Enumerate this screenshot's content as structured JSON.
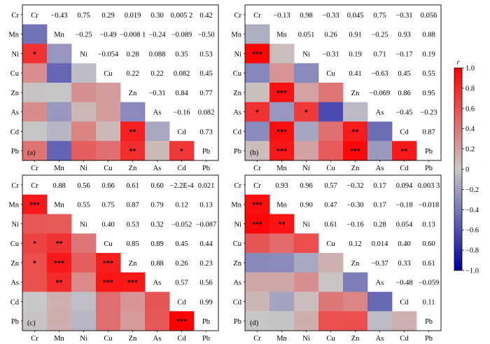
{
  "chart_data": {
    "type": "heatmap",
    "variables": [
      "Cr",
      "Mn",
      "Ni",
      "Cu",
      "Zn",
      "As",
      "Cd",
      "Pb"
    ],
    "colorbar": {
      "label": "r",
      "range": [
        -1.0,
        1.0
      ],
      "ticks": [
        "1.0",
        "0.8",
        "0.6",
        "0.4",
        "0.2",
        "0",
        "−0.2",
        "−0.4",
        "−0.6",
        "−0.8",
        "−1.0"
      ],
      "colors": {
        "negative": "#0000a0",
        "neutral": "#c8c8c8",
        "positive": "#ff0000"
      }
    },
    "panels": [
      {
        "label": "(a)",
        "upper_labels": [
          [
            "",
            "−0.43",
            "0.75",
            "0.29",
            "0.019",
            "0.30",
            "0.005 2",
            "0.42"
          ],
          [
            "",
            "",
            "−0.25",
            "−0.49",
            "−0.008 1",
            "−0.24",
            "−0.089",
            "−0.50"
          ],
          [
            "",
            "",
            "",
            "−0.054",
            "0.28",
            "0.088",
            "0.35",
            "0.53"
          ],
          [
            "",
            "",
            "",
            "",
            "0.22",
            "0.22",
            "0.082",
            "0.45"
          ],
          [
            "",
            "",
            "",
            "",
            "",
            "−0.31",
            "0.84",
            "0.77"
          ],
          [
            "",
            "",
            "",
            "",
            "",
            "",
            "−0.16",
            "0.082"
          ],
          [
            "",
            "",
            "",
            "",
            "",
            "",
            "",
            "0.73"
          ],
          [
            "",
            "",
            "",
            "",
            "",
            "",
            "",
            ""
          ]
        ],
        "lower": [
          [
            0,
            0,
            0,
            0,
            0,
            0,
            0,
            0
          ],
          [
            -0.43,
            0,
            0,
            0,
            0,
            0,
            0,
            0
          ],
          [
            0.75,
            -0.25,
            0,
            0,
            0,
            0,
            0,
            0
          ],
          [
            0.29,
            -0.49,
            -0.054,
            0,
            0,
            0,
            0,
            0
          ],
          [
            0.019,
            -0.0081,
            0.28,
            0.22,
            0,
            0,
            0,
            0
          ],
          [
            0.3,
            -0.24,
            0.088,
            0.22,
            -0.31,
            0,
            0,
            0
          ],
          [
            0.0052,
            -0.089,
            0.35,
            0.082,
            0.84,
            -0.16,
            0,
            0
          ],
          [
            0.42,
            -0.5,
            0.53,
            0.45,
            0.77,
            0.082,
            0.73,
            0
          ]
        ],
        "stars": [
          [
            "",
            "",
            "",
            "",
            "",
            "",
            "",
            ""
          ],
          [
            "",
            "",
            "",
            "",
            "",
            "",
            "",
            ""
          ],
          [
            "*",
            "",
            "",
            "",
            "",
            "",
            "",
            ""
          ],
          [
            "",
            "",
            "",
            "",
            "",
            "",
            "",
            ""
          ],
          [
            "",
            "",
            "",
            "",
            "",
            "",
            "",
            ""
          ],
          [
            "",
            "",
            "",
            "",
            "",
            "",
            "",
            ""
          ],
          [
            "",
            "",
            "",
            "",
            "**",
            "",
            "",
            ""
          ],
          [
            "",
            "",
            "",
            "",
            "**",
            "",
            "*",
            ""
          ]
        ]
      },
      {
        "label": "(b)",
        "upper_labels": [
          [
            "",
            "−0.13",
            "0.98",
            "−0.33",
            "0.045",
            "0.75",
            "−0.31",
            "0.056"
          ],
          [
            "",
            "",
            "0.051",
            "0.26",
            "0.91",
            "−0.25",
            "0.93",
            "0.88"
          ],
          [
            "",
            "",
            "",
            "−0.31",
            "0.19",
            "0.71",
            "−0.17",
            "0.19"
          ],
          [
            "",
            "",
            "",
            "",
            "0.41",
            "−0.63",
            "0.45",
            "0.55"
          ],
          [
            "",
            "",
            "",
            "",
            "",
            "−0.069",
            "0.86",
            "0.95"
          ],
          [
            "",
            "",
            "",
            "",
            "",
            "",
            "−0.45",
            "−0.23"
          ],
          [
            "",
            "",
            "",
            "",
            "",
            "",
            "",
            "0.87"
          ],
          [
            "",
            "",
            "",
            "",
            "",
            "",
            "",
            ""
          ]
        ],
        "lower": [
          [
            0,
            0,
            0,
            0,
            0,
            0,
            0,
            0
          ],
          [
            -0.13,
            0,
            0,
            0,
            0,
            0,
            0,
            0
          ],
          [
            0.98,
            0.051,
            0,
            0,
            0,
            0,
            0,
            0
          ],
          [
            -0.33,
            0.26,
            -0.31,
            0,
            0,
            0,
            0,
            0
          ],
          [
            0.045,
            0.91,
            0.19,
            0.41,
            0,
            0,
            0,
            0
          ],
          [
            0.75,
            -0.25,
            0.71,
            -0.63,
            -0.069,
            0,
            0,
            0
          ],
          [
            -0.31,
            0.93,
            -0.17,
            0.45,
            0.86,
            -0.45,
            0,
            0
          ],
          [
            0.056,
            0.88,
            0.19,
            0.55,
            0.95,
            -0.23,
            0.87,
            0
          ]
        ],
        "stars": [
          [
            "",
            "",
            "",
            "",
            "",
            "",
            "",
            ""
          ],
          [
            "",
            "",
            "",
            "",
            "",
            "",
            "",
            ""
          ],
          [
            "***",
            "",
            "",
            "",
            "",
            "",
            "",
            ""
          ],
          [
            "",
            "",
            "",
            "",
            "",
            "",
            "",
            ""
          ],
          [
            "",
            "***",
            "",
            "",
            "",
            "",
            "",
            ""
          ],
          [
            "*",
            "",
            "*",
            "",
            "",
            "",
            "",
            ""
          ],
          [
            "",
            "***",
            "",
            "",
            "**",
            "",
            "",
            ""
          ],
          [
            "",
            "***",
            "",
            "",
            "***",
            "",
            "**",
            ""
          ]
        ]
      },
      {
        "label": "(c)",
        "upper_labels": [
          [
            "",
            "0.88",
            "0.56",
            "0.66",
            "0.61",
            "0.60",
            "−2.2E-4",
            "0.021"
          ],
          [
            "",
            "",
            "0.55",
            "0.75",
            "0.87",
            "0.79",
            "0.12",
            "0.13"
          ],
          [
            "",
            "",
            "",
            "0.40",
            "0.53",
            "0.32",
            "−0.052",
            "−0.087"
          ],
          [
            "",
            "",
            "",
            "",
            "0.85",
            "0.89",
            "0.45",
            "0.44"
          ],
          [
            "",
            "",
            "",
            "",
            "",
            "0.88",
            "0.26",
            "0.23"
          ],
          [
            "",
            "",
            "",
            "",
            "",
            "",
            "0.57",
            "0.56"
          ],
          [
            "",
            "",
            "",
            "",
            "",
            "",
            "",
            "0.99"
          ],
          [
            "",
            "",
            "",
            "",
            "",
            "",
            "",
            ""
          ]
        ],
        "lower": [
          [
            0,
            0,
            0,
            0,
            0,
            0,
            0,
            0
          ],
          [
            0.88,
            0,
            0,
            0,
            0,
            0,
            0,
            0
          ],
          [
            0.56,
            0.55,
            0,
            0,
            0,
            0,
            0,
            0
          ],
          [
            0.66,
            0.75,
            0.4,
            0,
            0,
            0,
            0,
            0
          ],
          [
            0.61,
            0.87,
            0.53,
            0.85,
            0,
            0,
            0,
            0
          ],
          [
            0.6,
            0.79,
            0.32,
            0.89,
            0.88,
            0,
            0,
            0
          ],
          [
            -0.00022,
            0.12,
            -0.052,
            0.45,
            0.26,
            0.57,
            0,
            0
          ],
          [
            0.021,
            0.13,
            -0.087,
            0.44,
            0.23,
            0.56,
            0.99,
            0
          ]
        ],
        "stars": [
          [
            "",
            "",
            "",
            "",
            "",
            "",
            "",
            ""
          ],
          [
            "***",
            "",
            "",
            "",
            "",
            "",
            "",
            ""
          ],
          [
            "",
            "",
            "",
            "",
            "",
            "",
            "",
            ""
          ],
          [
            "*",
            "**",
            "",
            "",
            "",
            "",
            "",
            ""
          ],
          [
            "*",
            "***",
            "",
            "***",
            "",
            "",
            "",
            ""
          ],
          [
            "",
            "**",
            "",
            "***",
            "***",
            "",
            "",
            ""
          ],
          [
            "",
            "",
            "",
            "",
            "",
            "",
            "",
            ""
          ],
          [
            "",
            "",
            "",
            "",
            "",
            "",
            "***",
            ""
          ]
        ]
      },
      {
        "label": "(d)",
        "upper_labels": [
          [
            "",
            "0.93",
            "0.96",
            "0.57",
            "−0.32",
            "0.17",
            "0.094",
            "0.003 3"
          ],
          [
            "",
            "",
            "0.90",
            "0.47",
            "−0.30",
            "0.17",
            "−0.18",
            "−0.018"
          ],
          [
            "",
            "",
            "",
            "0.61",
            "−0.16",
            "0.28",
            "0.054",
            "0.13"
          ],
          [
            "",
            "",
            "",
            "",
            "0.12",
            "0.014",
            "0.40",
            "0.60"
          ],
          [
            "",
            "",
            "",
            "",
            "",
            "−0.37",
            "0.33",
            "0.61"
          ],
          [
            "",
            "",
            "",
            "",
            "",
            "",
            "−0.48",
            "−0.059"
          ],
          [
            "",
            "",
            "",
            "",
            "",
            "",
            "",
            "0.11"
          ],
          [
            "",
            "",
            "",
            "",
            "",
            "",
            "",
            ""
          ]
        ],
        "lower": [
          [
            0,
            0,
            0,
            0,
            0,
            0,
            0,
            0
          ],
          [
            0.93,
            0,
            0,
            0,
            0,
            0,
            0,
            0
          ],
          [
            0.96,
            0.9,
            0,
            0,
            0,
            0,
            0,
            0
          ],
          [
            0.57,
            0.47,
            0.61,
            0,
            0,
            0,
            0,
            0
          ],
          [
            -0.32,
            -0.3,
            -0.16,
            0.12,
            0,
            0,
            0,
            0
          ],
          [
            0.17,
            0.17,
            0.28,
            0.014,
            -0.37,
            0,
            0,
            0
          ],
          [
            0.094,
            -0.18,
            0.054,
            0.4,
            0.33,
            -0.48,
            0,
            0
          ],
          [
            0.0033,
            -0.018,
            0.13,
            0.6,
            0.61,
            -0.059,
            0.11,
            0
          ]
        ],
        "stars": [
          [
            "",
            "",
            "",
            "",
            "",
            "",
            "",
            ""
          ],
          [
            "***",
            "",
            "",
            "",
            "",
            "",
            "",
            ""
          ],
          [
            "***",
            "**",
            "",
            "",
            "",
            "",
            "",
            ""
          ],
          [
            "",
            "",
            "",
            "",
            "",
            "",
            "",
            ""
          ],
          [
            "",
            "",
            "",
            "",
            "",
            "",
            "",
            ""
          ],
          [
            "",
            "",
            "",
            "",
            "",
            "",
            "",
            ""
          ],
          [
            "",
            "",
            "",
            "",
            "",
            "",
            "",
            ""
          ],
          [
            "",
            "",
            "",
            "",
            "",
            "",
            "",
            ""
          ]
        ]
      }
    ]
  }
}
